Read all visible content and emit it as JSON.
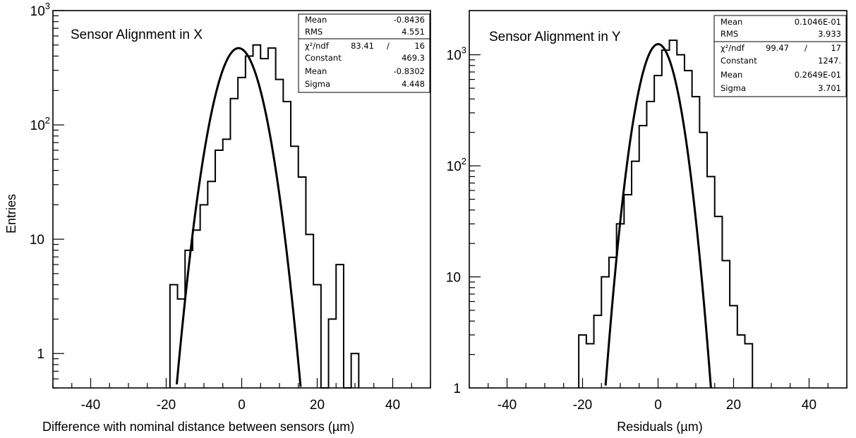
{
  "chart_data": [
    {
      "type": "histogram",
      "title": "Sensor Alignment in X",
      "xlabel": "Difference with nominal distance between sensors (µm)",
      "ylabel": "Entries",
      "xlim": [
        -50,
        50
      ],
      "ylim": [
        0.5,
        1000
      ],
      "y_scale": "log",
      "x_ticks": [
        "-40",
        "-20",
        "0",
        "20",
        "40"
      ],
      "y_ticks": [
        "1",
        "10",
        "10²",
        "10³"
      ],
      "bin_width": 2,
      "bin_edges_start": -19,
      "counts": [
        4,
        3,
        8,
        12,
        20,
        32,
        60,
        75,
        170,
        260,
        400,
        500,
        380,
        470,
        250,
        160,
        65,
        35,
        11,
        4,
        0,
        2,
        6,
        0,
        1
      ],
      "fit": {
        "type": "gaussian",
        "constant": 469.3,
        "mean": -0.8302,
        "sigma": 4.448
      },
      "stats": [
        {
          "label": "Mean",
          "value": "-0.8436"
        },
        {
          "label": "RMS",
          "value": "4.551"
        },
        {
          "label": "χ²/ndf",
          "value": "83.41",
          "value2": "16"
        },
        {
          "label": "Constant",
          "value": "469.3"
        },
        {
          "label": "Mean",
          "value": "-0.8302"
        },
        {
          "label": "Sigma",
          "value": "4.448"
        }
      ]
    },
    {
      "type": "histogram",
      "title": "Sensor Alignment in Y",
      "xlabel": "Residuals (µm)",
      "ylabel": "",
      "xlim": [
        -50,
        50
      ],
      "ylim": [
        1,
        2500
      ],
      "y_scale": "log",
      "x_ticks": [
        "-40",
        "-20",
        "0",
        "20",
        "40"
      ],
      "y_ticks": [
        "1",
        "10",
        "10²",
        "10³"
      ],
      "bin_width": 2,
      "bin_edges_start": -21,
      "counts": [
        3,
        2.5,
        4.5,
        10,
        15,
        30,
        55,
        110,
        230,
        380,
        650,
        1100,
        1350,
        1000,
        720,
        420,
        200,
        80,
        35,
        14,
        5.5,
        3,
        2.5
      ],
      "fit": {
        "type": "gaussian",
        "constant": 1247,
        "mean": 0.02649,
        "sigma": 3.701
      },
      "stats": [
        {
          "label": "Mean",
          "value": "0.1046E-01"
        },
        {
          "label": "RMS",
          "value": "3.933"
        },
        {
          "label": "χ²/ndf",
          "value": "99.47",
          "value2": "17"
        },
        {
          "label": "Constant",
          "value": "1247."
        },
        {
          "label": "Mean",
          "value": "0.2649E-01"
        },
        {
          "label": "Sigma",
          "value": "3.701"
        }
      ]
    }
  ]
}
